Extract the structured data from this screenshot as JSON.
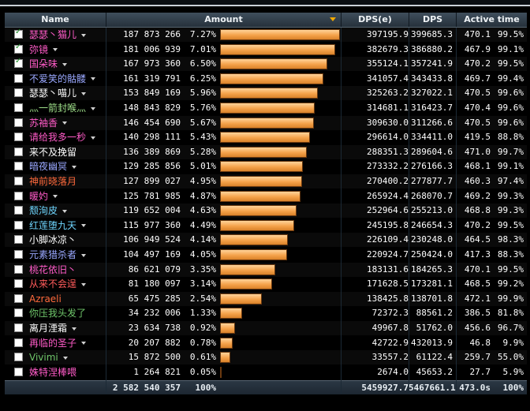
{
  "header": {
    "name": "Name",
    "amount": "Amount",
    "dpse": "DPS(e)",
    "dps": "DPS",
    "active": "Active time"
  },
  "rows": [
    {
      "name": "瑟瑟丶猫儿",
      "checked": true,
      "dropdown": true,
      "color": "#ff5bc8",
      "amount": "187 873 266",
      "pct": "7.27%",
      "bar": 1.0,
      "dpse": "397195.9",
      "dps": "399685.3",
      "active": "470.1",
      "activep": "99.5%"
    },
    {
      "name": "弥镜",
      "checked": true,
      "dropdown": true,
      "color": "#ff5bc8",
      "amount": "181 006 939",
      "pct": "7.01%",
      "bar": 0.963,
      "dpse": "382679.3",
      "dps": "386880.2",
      "active": "467.9",
      "activep": "99.1%"
    },
    {
      "name": "国朵味",
      "checked": true,
      "dropdown": true,
      "color": "#ff5bc8",
      "amount": "167 973 360",
      "pct": "6.50%",
      "bar": 0.894,
      "dpse": "355124.1",
      "dps": "357241.9",
      "active": "470.2",
      "activep": "99.5%"
    },
    {
      "name": "不爱笑的骷髅",
      "checked": false,
      "dropdown": true,
      "color": "#9aa8ff",
      "amount": "161 319 791",
      "pct": "6.25%",
      "bar": 0.859,
      "dpse": "341057.4",
      "dps": "343433.8",
      "active": "469.7",
      "activep": "99.4%"
    },
    {
      "name": "瑟瑟丶喵儿",
      "checked": false,
      "dropdown": true,
      "color": "#ffffff",
      "amount": "153 849 169",
      "pct": "5.96%",
      "bar": 0.819,
      "dpse": "325263.2",
      "dps": "327022.1",
      "active": "470.5",
      "activep": "99.6%"
    },
    {
      "name": "灬一箭封喉灬",
      "checked": false,
      "dropdown": true,
      "color": "#9fe08a",
      "amount": "148 843 829",
      "pct": "5.76%",
      "bar": 0.792,
      "dpse": "314681.1",
      "dps": "316423.7",
      "active": "470.4",
      "activep": "99.6%"
    },
    {
      "name": "苏袖香",
      "checked": false,
      "dropdown": true,
      "color": "#ff5bc8",
      "amount": "146 454 690",
      "pct": "5.67%",
      "bar": 0.78,
      "dpse": "309630.0",
      "dps": "311266.6",
      "active": "470.5",
      "activep": "99.6%"
    },
    {
      "name": "请给我多一秒",
      "checked": false,
      "dropdown": true,
      "color": "#ff5bc8",
      "amount": "140 298 111",
      "pct": "5.43%",
      "bar": 0.747,
      "dpse": "296614.0",
      "dps": "334411.0",
      "active": "419.5",
      "activep": "88.8%"
    },
    {
      "name": "来不及挽留",
      "checked": false,
      "dropdown": false,
      "color": "#ffffff",
      "amount": "136 389 869",
      "pct": "5.28%",
      "bar": 0.726,
      "dpse": "288351.3",
      "dps": "289604.6",
      "active": "471.0",
      "activep": "99.7%"
    },
    {
      "name": "暗夜幽冥",
      "checked": false,
      "dropdown": true,
      "color": "#9aa8ff",
      "amount": "129 285 856",
      "pct": "5.01%",
      "bar": 0.688,
      "dpse": "273332.2",
      "dps": "276166.3",
      "active": "468.1",
      "activep": "99.1%"
    },
    {
      "name": "神前晓落月",
      "checked": false,
      "dropdown": false,
      "color": "#ff6a3c",
      "amount": "127 899 027",
      "pct": "4.95%",
      "bar": 0.681,
      "dpse": "270400.2",
      "dps": "277877.7",
      "active": "460.3",
      "activep": "97.4%"
    },
    {
      "name": "暖妁",
      "checked": false,
      "dropdown": true,
      "color": "#ff5bc8",
      "amount": "125 781 985",
      "pct": "4.87%",
      "bar": 0.67,
      "dpse": "265924.4",
      "dps": "268070.7",
      "active": "469.2",
      "activep": "99.3%"
    },
    {
      "name": "颓洵皮",
      "checked": false,
      "dropdown": true,
      "color": "#6fd6ff",
      "amount": "119 652 004",
      "pct": "4.63%",
      "bar": 0.637,
      "dpse": "252964.6",
      "dps": "255213.0",
      "active": "468.8",
      "activep": "99.3%"
    },
    {
      "name": "红莲堕九天",
      "checked": false,
      "dropdown": true,
      "color": "#6fd6ff",
      "amount": "115 977 360",
      "pct": "4.49%",
      "bar": 0.617,
      "dpse": "245195.8",
      "dps": "246654.3",
      "active": "470.2",
      "activep": "99.5%"
    },
    {
      "name": "小脚冰凉丶",
      "checked": false,
      "dropdown": false,
      "color": "#ffffff",
      "amount": "106 949 524",
      "pct": "4.14%",
      "bar": 0.569,
      "dpse": "226109.4",
      "dps": "230248.0",
      "active": "464.5",
      "activep": "98.3%"
    },
    {
      "name": "元素猎杀者",
      "checked": false,
      "dropdown": true,
      "color": "#9aa8ff",
      "amount": "104 497 169",
      "pct": "4.05%",
      "bar": 0.556,
      "dpse": "220924.7",
      "dps": "250424.0",
      "active": "417.3",
      "activep": "88.3%"
    },
    {
      "name": "桃花依旧丶",
      "checked": false,
      "dropdown": false,
      "color": "#ff5bc8",
      "amount": "86 621 079",
      "pct": "3.35%",
      "bar": 0.461,
      "dpse": "183131.6",
      "dps": "184265.3",
      "active": "470.1",
      "activep": "99.5%"
    },
    {
      "name": "从来不会逞",
      "checked": false,
      "dropdown": true,
      "color": "#ff5b5b",
      "amount": "81 180 097",
      "pct": "3.14%",
      "bar": 0.432,
      "dpse": "171628.5",
      "dps": "173281.1",
      "active": "468.5",
      "activep": "99.2%"
    },
    {
      "name": "Azraeli",
      "checked": false,
      "dropdown": false,
      "color": "#ff6a3c",
      "amount": "65 475 285",
      "pct": "2.54%",
      "bar": 0.349,
      "dpse": "138425.8",
      "dps": "138701.8",
      "active": "472.1",
      "activep": "99.9%"
    },
    {
      "name": "你压我头发了",
      "checked": false,
      "dropdown": false,
      "color": "#6fc66a",
      "amount": "34 232 006",
      "pct": "1.33%",
      "bar": 0.182,
      "dpse": "72372.3",
      "dps": "88561.2",
      "active": "386.5",
      "activep": "81.8%"
    },
    {
      "name": "离月湮霜",
      "checked": false,
      "dropdown": true,
      "color": "#ffffff",
      "amount": "23 634 738",
      "pct": "0.92%",
      "bar": 0.126,
      "dpse": "49967.8",
      "dps": "51762.0",
      "active": "456.6",
      "activep": "96.7%"
    },
    {
      "name": "再临的圣子",
      "checked": false,
      "dropdown": true,
      "color": "#ff5bc8",
      "amount": "20 207 882",
      "pct": "0.78%",
      "bar": 0.108,
      "dpse": "42722.9",
      "dps": "432013.9",
      "active": "46.8",
      "activep": "9.9%"
    },
    {
      "name": "Vivimi",
      "checked": false,
      "dropdown": true,
      "color": "#6fc66a",
      "amount": "15 872 500",
      "pct": "0.61%",
      "bar": 0.084,
      "dpse": "33557.2",
      "dps": "61122.4",
      "active": "259.7",
      "activep": "55.0%"
    },
    {
      "name": "姝特涅棒喂",
      "checked": false,
      "dropdown": false,
      "color": "#ff5bc8",
      "amount": "1 264 821",
      "pct": "0.05%",
      "bar": 0.007,
      "dpse": "2674.0",
      "dps": "45653.2",
      "active": "27.7",
      "activep": "5.9%"
    }
  ],
  "total": {
    "amount": "2 582 540 357",
    "pct": "100%",
    "dpse": "5459927.7",
    "dps": "5467661.1",
    "active": "473.0s",
    "activep": "100%"
  }
}
